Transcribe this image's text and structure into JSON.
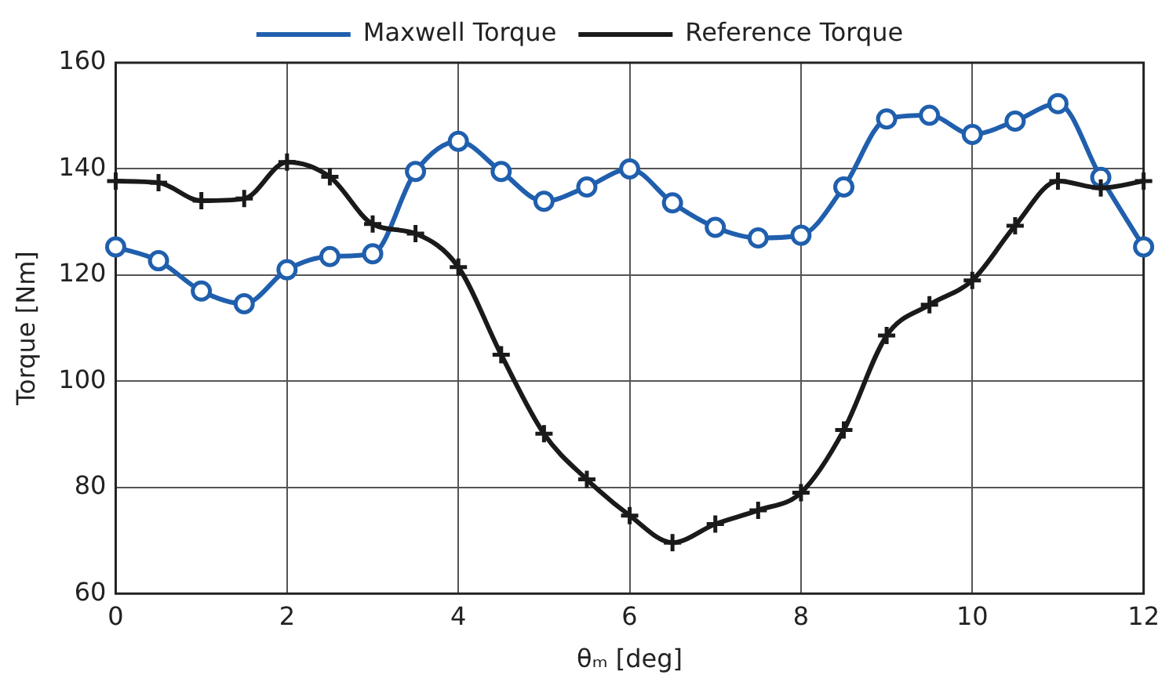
{
  "chart_data": {
    "type": "line",
    "xlabel": "θₘ [deg]",
    "ylabel": "Torque [Nm]",
    "x": [
      0,
      0.5,
      1,
      1.5,
      2,
      2.5,
      3,
      3.5,
      4,
      4.5,
      5,
      5.5,
      6,
      6.5,
      7,
      7.5,
      8,
      8.5,
      9,
      9.5,
      10,
      10.5,
      11,
      11.5,
      12
    ],
    "series": [
      {
        "name": "Maxwell Torque",
        "color": "#1f5fad",
        "marker": "circle",
        "values": [
          125.3,
          122.7,
          117,
          114.6,
          121,
          123.5,
          124,
          139.5,
          145.2,
          139.5,
          133.9,
          136.6,
          140,
          133.6,
          129,
          127,
          127.5,
          136.6,
          149.4,
          150.1,
          146.5,
          149,
          152.3,
          138.4,
          125.3
        ]
      },
      {
        "name": "Reference Torque",
        "color": "#1a1a1a",
        "marker": "cross",
        "values": [
          137.7,
          137.4,
          134,
          134.4,
          141.3,
          138.5,
          129.6,
          127.8,
          121.5,
          105,
          90.1,
          81.5,
          74.7,
          69.6,
          73.1,
          75.7,
          79,
          90.8,
          108.6,
          114.4,
          119,
          129.3,
          137.7,
          136.4,
          137.7
        ]
      }
    ],
    "xlim": [
      0,
      12
    ],
    "xticks": [
      0,
      2,
      4,
      6,
      8,
      10,
      12
    ],
    "ylim": [
      60,
      160
    ],
    "yticks": [
      60,
      80,
      100,
      120,
      140,
      160
    ],
    "grid": true,
    "legend": "top",
    "line_style": "solid"
  }
}
